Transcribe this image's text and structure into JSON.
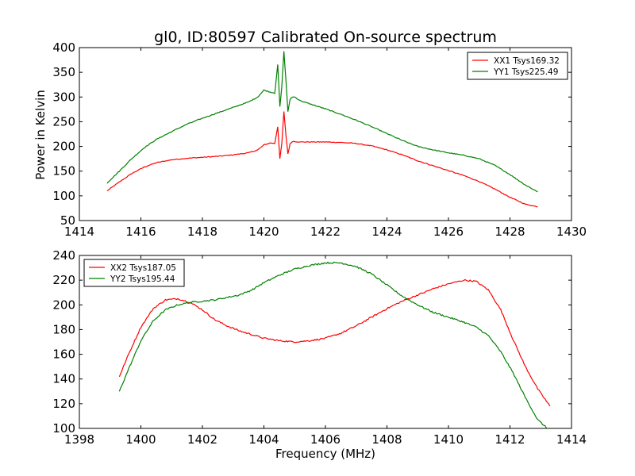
{
  "figure_title": "gl0, ID:80597 Calibrated On-source spectrum",
  "colors": {
    "xx": "#ff0000",
    "yy": "#008000"
  },
  "chart_data": [
    {
      "type": "line",
      "title": "gl0, ID:80597 Calibrated On-source spectrum",
      "xlabel": "",
      "ylabel": "Power in Kelvin",
      "xlim": [
        1414,
        1430
      ],
      "ylim": [
        50,
        400
      ],
      "xticks": [
        1414,
        1416,
        1418,
        1420,
        1422,
        1424,
        1426,
        1428,
        1430
      ],
      "yticks": [
        50,
        100,
        150,
        200,
        250,
        300,
        350,
        400
      ],
      "legend_position": "top-right",
      "series": [
        {
          "name": "XX1 Tsys169.32",
          "color": "#ff0000",
          "x": [
            1414.9,
            1415.3,
            1415.7,
            1416.1,
            1416.5,
            1417.0,
            1417.5,
            1418.0,
            1418.5,
            1419.0,
            1419.5,
            1419.8,
            1420.0,
            1420.2,
            1420.35,
            1420.45,
            1420.52,
            1420.58,
            1420.65,
            1420.72,
            1420.78,
            1420.85,
            1420.92,
            1421.0,
            1421.2,
            1421.5,
            1422.0,
            1422.5,
            1423.0,
            1423.5,
            1424.0,
            1424.5,
            1425.0,
            1425.5,
            1426.0,
            1426.5,
            1427.0,
            1427.5,
            1428.0,
            1428.5,
            1428.9
          ],
          "y": [
            110,
            128,
            145,
            158,
            167,
            173,
            176,
            178,
            180,
            183,
            187,
            193,
            203,
            207,
            206,
            240,
            175,
            205,
            270,
            220,
            185,
            205,
            210,
            210,
            209,
            209,
            209,
            208,
            206,
            201,
            193,
            183,
            171,
            161,
            151,
            141,
            129,
            114,
            97,
            83,
            78
          ]
        },
        {
          "name": "YY1 Tsys225.49",
          "color": "#008000",
          "x": [
            1414.9,
            1415.3,
            1415.7,
            1416.1,
            1416.5,
            1417.0,
            1417.5,
            1418.0,
            1418.5,
            1419.0,
            1419.5,
            1419.8,
            1420.0,
            1420.2,
            1420.35,
            1420.45,
            1420.52,
            1420.58,
            1420.65,
            1420.72,
            1420.78,
            1420.85,
            1420.92,
            1421.0,
            1421.2,
            1421.5,
            1422.0,
            1422.5,
            1423.0,
            1423.5,
            1424.0,
            1424.5,
            1425.0,
            1425.5,
            1426.0,
            1426.5,
            1427.0,
            1427.5,
            1428.0,
            1428.5,
            1428.9
          ],
          "y": [
            126,
            150,
            175,
            197,
            214,
            230,
            245,
            257,
            268,
            279,
            290,
            300,
            314,
            310,
            308,
            365,
            280,
            320,
            392,
            330,
            270,
            295,
            300,
            300,
            292,
            286,
            276,
            265,
            253,
            240,
            226,
            212,
            200,
            193,
            187,
            182,
            175,
            162,
            143,
            122,
            108
          ]
        }
      ]
    },
    {
      "type": "line",
      "title": "",
      "xlabel": "Frequency (MHz)",
      "ylabel": "",
      "xlim": [
        1398,
        1414
      ],
      "ylim": [
        100,
        240
      ],
      "xticks": [
        1398,
        1400,
        1402,
        1404,
        1406,
        1408,
        1410,
        1412,
        1414
      ],
      "yticks": [
        100,
        120,
        140,
        160,
        180,
        200,
        220,
        240
      ],
      "legend_position": "top-left",
      "series": [
        {
          "name": "XX2 Tsys187.05",
          "color": "#ff0000",
          "x": [
            1399.3,
            1399.6,
            1400.0,
            1400.4,
            1400.8,
            1401.2,
            1401.6,
            1402.0,
            1402.4,
            1402.8,
            1403.2,
            1403.6,
            1404.0,
            1404.5,
            1405.0,
            1405.5,
            1406.0,
            1406.5,
            1407.0,
            1407.5,
            1408.0,
            1408.5,
            1409.0,
            1409.5,
            1410.0,
            1410.5,
            1410.9,
            1411.3,
            1411.7,
            1412.1,
            1412.5,
            1412.9,
            1413.3
          ],
          "y": [
            142,
            160,
            182,
            197,
            204,
            205,
            202,
            196,
            188,
            183,
            179,
            176,
            173,
            171,
            170,
            171,
            173,
            177,
            183,
            190,
            197,
            203,
            208,
            213,
            217,
            220,
            219,
            212,
            196,
            172,
            150,
            132,
            118
          ]
        },
        {
          "name": "YY2 Tsys195.44",
          "color": "#008000",
          "x": [
            1399.3,
            1399.6,
            1400.0,
            1400.4,
            1400.8,
            1401.2,
            1401.6,
            1402.0,
            1402.4,
            1402.8,
            1403.2,
            1403.6,
            1404.0,
            1404.5,
            1405.0,
            1405.5,
            1406.0,
            1406.5,
            1407.0,
            1407.5,
            1408.0,
            1408.5,
            1409.0,
            1409.5,
            1410.0,
            1410.5,
            1410.9,
            1411.3,
            1411.7,
            1412.1,
            1412.5,
            1412.9,
            1413.3
          ],
          "y": [
            130,
            148,
            171,
            187,
            196,
            200,
            202,
            203,
            204,
            206,
            208,
            212,
            218,
            224,
            229,
            232,
            234,
            234,
            231,
            225,
            216,
            207,
            200,
            194,
            190,
            186,
            182,
            175,
            162,
            145,
            125,
            107,
            98
          ]
        }
      ]
    }
  ]
}
